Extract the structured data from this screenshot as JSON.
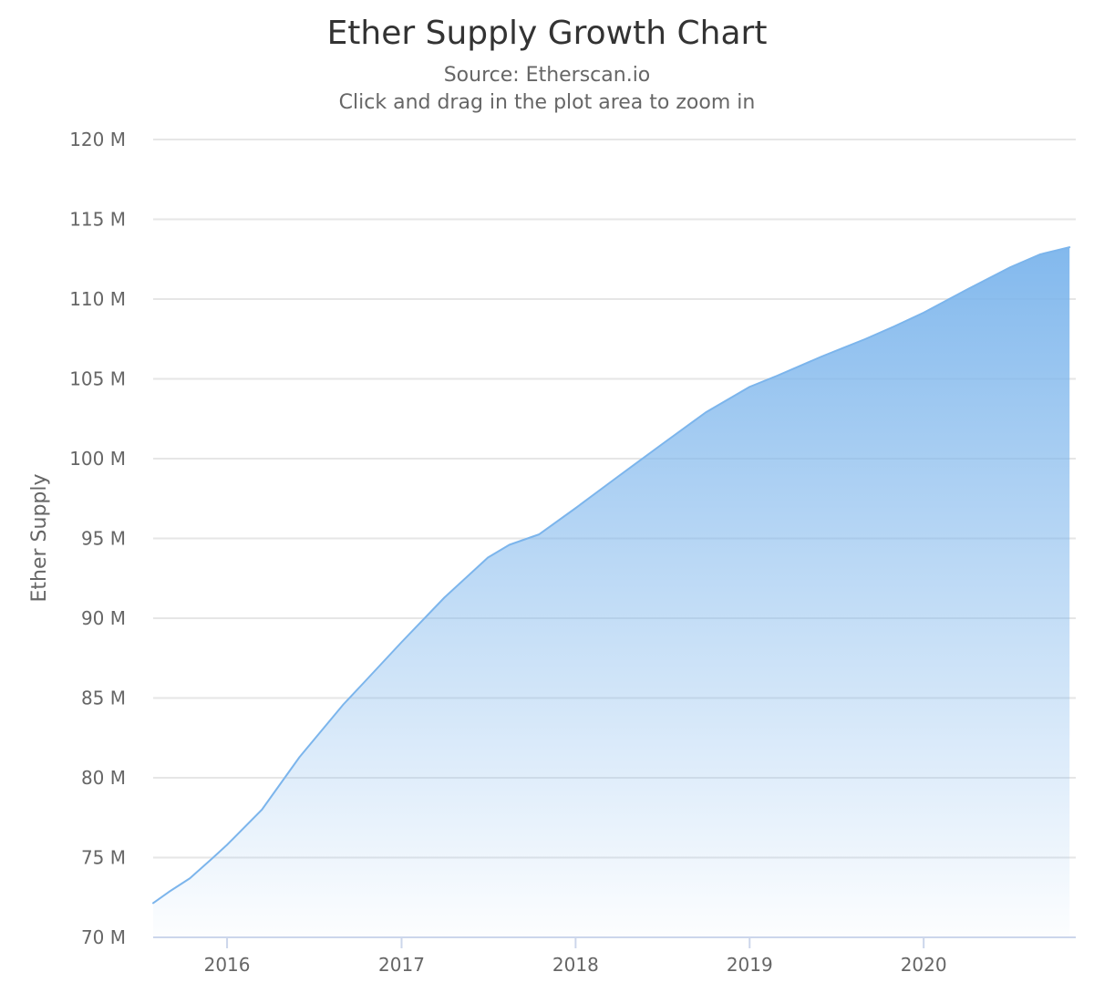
{
  "chart": {
    "title": "Ether Supply Growth Chart",
    "subtitle_line1": "Source: Etherscan.io",
    "subtitle_line2": "Click and drag in the plot area to zoom in"
  },
  "colors": {
    "series": "#7cb5ec",
    "grid": "#e6e6e6",
    "axis": "#ccd6eb",
    "text": "#666666",
    "title": "#333333"
  },
  "chart_data": {
    "type": "area",
    "title": "Ether Supply Growth Chart",
    "subtitle": "Source: Etherscan.io",
    "xlabel": "",
    "ylabel": "Ether Supply",
    "x_type": "datetime",
    "xlim": [
      "2015-07-30",
      "2020-11-15"
    ],
    "ylim": [
      70000000,
      120000000
    ],
    "y_ticks": [
      70000000,
      75000000,
      80000000,
      85000000,
      90000000,
      95000000,
      100000000,
      105000000,
      110000000,
      115000000,
      120000000
    ],
    "y_tick_labels": [
      "70 M",
      "75 M",
      "80 M",
      "85 M",
      "90 M",
      "95 M",
      "100 M",
      "105 M",
      "110 M",
      "115 M",
      "120 M"
    ],
    "x_ticks": [
      "2016-01-01",
      "2017-01-01",
      "2018-01-01",
      "2019-01-01",
      "2020-01-01"
    ],
    "x_tick_labels": [
      "2016",
      "2017",
      "2018",
      "2019",
      "2020"
    ],
    "grid": true,
    "legend": "none",
    "series": [
      {
        "x": [
          "2015-07-30",
          "2015-09-01",
          "2015-10-15",
          "2015-12-01",
          "2016-01-01",
          "2016-03-14",
          "2016-06-01",
          "2016-09-01",
          "2016-10-15",
          "2017-01-01",
          "2017-04-01",
          "2017-07-01",
          "2017-08-15",
          "2017-10-16",
          "2018-01-01",
          "2018-04-01",
          "2018-07-01",
          "2018-10-01",
          "2019-01-01",
          "2019-02-28",
          "2019-06-01",
          "2019-09-01",
          "2019-11-01",
          "2020-01-01",
          "2020-04-01",
          "2020-07-01",
          "2020-09-01",
          "2020-11-02"
        ],
        "values": [
          72150000,
          72850000,
          73700000,
          74950000,
          75800000,
          78000000,
          81300000,
          84600000,
          86000000,
          88500000,
          91300000,
          93800000,
          94600000,
          95250000,
          96900000,
          98900000,
          100900000,
          102900000,
          104500000,
          105200000,
          106400000,
          107500000,
          108300000,
          109150000,
          110600000,
          112000000,
          112800000,
          113250000
        ]
      }
    ]
  }
}
